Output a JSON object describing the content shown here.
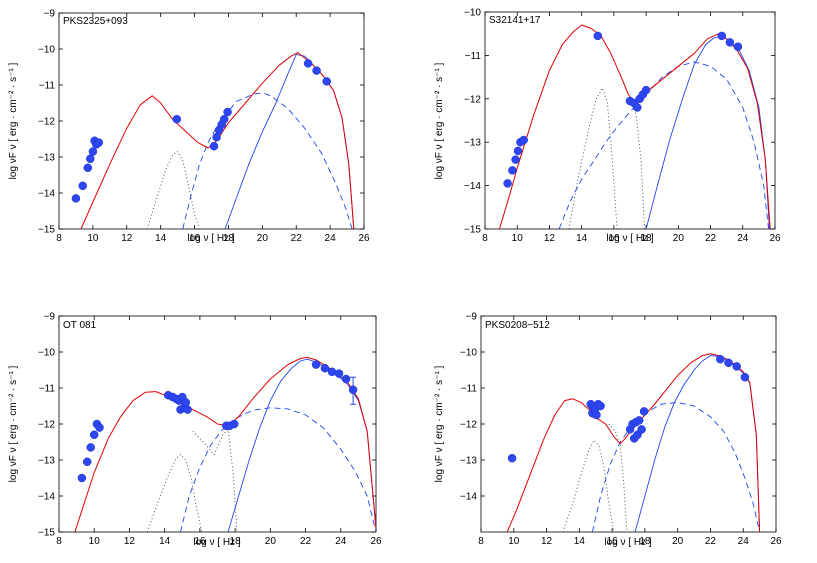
{
  "colors": {
    "total_model": "#e00000",
    "compton": "#2244ee",
    "points": "#2e46f0",
    "thermal": "#555555",
    "axis": "#000000"
  },
  "chart_data": [
    {
      "type": "line",
      "title": "PKS2325+093",
      "xlabel": "log ν [ Hz ]",
      "ylabel": "log νF ν [ erg · cm⁻² · s⁻¹ ]",
      "xlim": [
        8,
        26
      ],
      "ylim": [
        -15,
        -9
      ],
      "xticks": [
        8,
        10,
        12,
        14,
        16,
        18,
        20,
        22,
        24,
        26
      ],
      "yticks": [
        -15,
        -14,
        -13,
        -12,
        -11,
        -10,
        -9
      ],
      "series": [
        {
          "name": "total",
          "style": "solid-red",
          "x": [
            9.3,
            10,
            11,
            12,
            12.8,
            13.5,
            14,
            14.7,
            15.5,
            16.2,
            16.8,
            17.3,
            18,
            19,
            20,
            21,
            21.7,
            22.1,
            22.5,
            23,
            23.6,
            24.2,
            24.7,
            25.1,
            25.4
          ],
          "y": [
            -15,
            -14.25,
            -13.2,
            -12.2,
            -11.55,
            -11.3,
            -11.5,
            -11.95,
            -12.3,
            -12.6,
            -12.75,
            -12.55,
            -12.05,
            -11.5,
            -10.95,
            -10.45,
            -10.2,
            -10.1,
            -10.25,
            -10.45,
            -10.75,
            -11.15,
            -11.9,
            -13.2,
            -15
          ]
        },
        {
          "name": "synchrotron-soft",
          "style": "dotted-gray",
          "x": [
            13.2,
            13.8,
            14.3,
            14.7,
            15.0,
            15.3,
            15.6,
            16.0,
            16.3
          ],
          "y": [
            -15,
            -14.1,
            -13.35,
            -12.95,
            -12.85,
            -13.1,
            -13.7,
            -14.6,
            -15
          ]
        },
        {
          "name": "external-compton",
          "style": "solid-blue",
          "x": [
            17.8,
            18.5,
            19.2,
            20,
            20.8,
            21.5,
            22,
            22.5,
            23,
            23.6,
            24.2,
            24.7,
            25.1,
            25.4
          ],
          "y": [
            -15,
            -14.1,
            -13.2,
            -12.3,
            -11.5,
            -10.7,
            -10.15,
            -10.2,
            -10.45,
            -10.75,
            -11.15,
            -11.9,
            -13.2,
            -15
          ]
        },
        {
          "name": "ssc",
          "style": "dashed-blue",
          "x": [
            15.3,
            15.8,
            16.3,
            16.8,
            17.5,
            18.5,
            19.5,
            20,
            20.5,
            21.5,
            22.5,
            23.5,
            24.3,
            24.9,
            25.3
          ],
          "y": [
            -15,
            -14.05,
            -13.2,
            -12.6,
            -12.0,
            -11.45,
            -11.25,
            -11.22,
            -11.3,
            -11.65,
            -12.2,
            -12.9,
            -13.7,
            -14.4,
            -15
          ]
        }
      ],
      "points": {
        "x": [
          9.0,
          9.4,
          9.7,
          9.85,
          10.0,
          10.1,
          10.2,
          10.35,
          14.95,
          17.15,
          17.3,
          17.45,
          17.6,
          17.75,
          17.95,
          22.7,
          23.2,
          23.8
        ],
        "y": [
          -14.15,
          -13.8,
          -13.3,
          -13.05,
          -12.85,
          -12.55,
          -12.65,
          -12.6,
          -11.95,
          -12.7,
          -12.45,
          -12.25,
          -12.1,
          -11.95,
          -11.75,
          -10.4,
          -10.6,
          -10.9
        ]
      },
      "error_bars": []
    },
    {
      "type": "line",
      "title": "S32141+17",
      "xlabel": "log ν [ Hz ]",
      "ylabel": "log νF ν [ erg · cm⁻² · s⁻¹ ]",
      "xlim": [
        8,
        26
      ],
      "ylim": [
        -15,
        -10
      ],
      "xticks": [
        8,
        10,
        12,
        14,
        16,
        18,
        20,
        22,
        24,
        26
      ],
      "yticks": [
        -15,
        -14,
        -13,
        -12,
        -11,
        -10
      ],
      "series": [
        {
          "name": "total",
          "style": "solid-red",
          "x": [
            8.9,
            9.5,
            10,
            11,
            12,
            12.8,
            13.5,
            14,
            14.6,
            15.2,
            15.8,
            16.4,
            16.9,
            17.3,
            17.6,
            18,
            19,
            20,
            21,
            21.8,
            22.5,
            23,
            23.6,
            24.3,
            24.9,
            25.4,
            25.7
          ],
          "y": [
            -15,
            -14.25,
            -13.6,
            -12.4,
            -11.35,
            -10.75,
            -10.45,
            -10.3,
            -10.38,
            -10.55,
            -10.95,
            -11.45,
            -11.9,
            -12.1,
            -11.95,
            -11.85,
            -11.55,
            -11.25,
            -10.95,
            -10.62,
            -10.5,
            -10.62,
            -10.85,
            -11.3,
            -12.1,
            -13.4,
            -15
          ]
        },
        {
          "name": "synchrotron-soft",
          "style": "dotted-gray",
          "x": [
            13.2,
            13.8,
            14.4,
            14.9,
            15.3,
            15.6,
            15.9,
            16.2
          ],
          "y": [
            -15,
            -13.8,
            -12.75,
            -12.0,
            -11.75,
            -12.1,
            -13.4,
            -15
          ]
        },
        {
          "name": "synchrotron-hard",
          "style": "dotted-gray",
          "x": [
            16.8,
            17.1,
            17.4,
            17.7,
            17.9
          ],
          "y": [
            -12.1,
            -12.0,
            -12.4,
            -13.5,
            -15
          ]
        },
        {
          "name": "external-compton",
          "style": "solid-blue",
          "x": [
            18.0,
            18.7,
            19.5,
            20.3,
            21,
            21.7,
            22.2,
            22.7,
            23.2,
            23.8,
            24.4,
            25,
            25.4,
            25.65
          ],
          "y": [
            -15,
            -14.0,
            -12.9,
            -11.95,
            -11.2,
            -10.75,
            -10.6,
            -10.55,
            -10.68,
            -10.9,
            -11.35,
            -12.2,
            -13.4,
            -15
          ]
        },
        {
          "name": "ssc",
          "style": "dashed-blue",
          "x": [
            12.6,
            13.3,
            14,
            14.8,
            15.5,
            16.2,
            17,
            18,
            19,
            20,
            21,
            22,
            23,
            24,
            24.7,
            25.3,
            25.6
          ],
          "y": [
            -15,
            -14.35,
            -13.85,
            -13.4,
            -13.0,
            -12.65,
            -12.3,
            -11.9,
            -11.5,
            -11.25,
            -11.15,
            -11.25,
            -11.55,
            -12.2,
            -13.0,
            -14.0,
            -15
          ]
        }
      ],
      "points": {
        "x": [
          9.4,
          9.7,
          9.9,
          10.05,
          10.2,
          10.4,
          15.0,
          17.0,
          17.25,
          17.45,
          17.6,
          17.8,
          18.0,
          22.7,
          23.2,
          23.7
        ],
        "y": [
          -13.95,
          -13.65,
          -13.4,
          -13.2,
          -13.0,
          -12.95,
          -10.55,
          -12.05,
          -12.1,
          -12.2,
          -12.0,
          -11.9,
          -11.8,
          -10.55,
          -10.7,
          -10.8
        ]
      },
      "error_bars": []
    },
    {
      "type": "line",
      "title": "OT 081",
      "xlabel": "log ν [ Hz ]",
      "ylabel": "log νF ν [ erg · cm⁻² · s⁻¹ ]",
      "xlim": [
        8,
        26
      ],
      "ylim": [
        -15,
        -9
      ],
      "xticks": [
        8,
        10,
        12,
        14,
        16,
        18,
        20,
        22,
        24,
        26
      ],
      "yticks": [
        -15,
        -14,
        -13,
        -12,
        -11,
        -10,
        -9
      ],
      "series": [
        {
          "name": "total",
          "style": "solid-red",
          "x": [
            8.9,
            9.5,
            10,
            10.8,
            11.5,
            12.2,
            12.9,
            13.5,
            14.0,
            14.6,
            15.2,
            15.8,
            16.4,
            17,
            17.6,
            18.2,
            19,
            20,
            21,
            21.7,
            22.1,
            22.6,
            23.2,
            23.8,
            24.4,
            25,
            25.5,
            26
          ],
          "y": [
            -15,
            -14.1,
            -13.35,
            -12.4,
            -11.8,
            -11.35,
            -11.12,
            -11.1,
            -11.2,
            -11.35,
            -11.5,
            -11.65,
            -11.8,
            -12.0,
            -12.05,
            -11.8,
            -11.3,
            -10.75,
            -10.35,
            -10.18,
            -10.15,
            -10.22,
            -10.4,
            -10.6,
            -10.85,
            -11.3,
            -12.2,
            -14.9
          ]
        },
        {
          "name": "synchrotron-soft",
          "style": "dotted-gray",
          "x": [
            13.0,
            13.6,
            14.1,
            14.6,
            14.9,
            15.2,
            15.5,
            15.8,
            16.1
          ],
          "y": [
            -15,
            -14.2,
            -13.55,
            -13.0,
            -12.85,
            -13.0,
            -13.5,
            -14.3,
            -15
          ]
        },
        {
          "name": "synchrotron-hard",
          "style": "dotted-gray",
          "x": [
            15.6,
            16.2,
            16.8,
            17.3,
            17.6,
            17.9,
            18.1
          ],
          "y": [
            -12.2,
            -12.5,
            -12.85,
            -12.3,
            -12.15,
            -13.4,
            -15
          ]
        },
        {
          "name": "external-compton",
          "style": "solid-blue",
          "x": [
            17.6,
            18.2,
            18.8,
            19.4,
            20,
            20.6,
            21.2,
            21.7,
            22.1,
            22.6,
            23.2,
            23.8,
            24.4,
            25,
            25.5,
            26
          ],
          "y": [
            -15,
            -14.0,
            -13.0,
            -12.1,
            -11.35,
            -10.8,
            -10.45,
            -10.25,
            -10.2,
            -10.28,
            -10.45,
            -10.65,
            -10.9,
            -11.35,
            -12.2,
            -14.9
          ]
        },
        {
          "name": "ssc",
          "style": "dashed-blue",
          "x": [
            14.9,
            15.4,
            16,
            16.6,
            17.2,
            18,
            19,
            20,
            21,
            22,
            23,
            24,
            24.8,
            25.5,
            26
          ],
          "y": [
            -15,
            -14.0,
            -13.2,
            -12.6,
            -12.2,
            -11.85,
            -11.62,
            -11.55,
            -11.58,
            -11.75,
            -12.1,
            -12.7,
            -13.3,
            -14.0,
            -15
          ]
        }
      ],
      "points": {
        "x": [
          9.3,
          9.6,
          9.8,
          10.0,
          10.15,
          10.3,
          14.2,
          14.45,
          14.65,
          14.8,
          14.9,
          15.0,
          15.1,
          15.2,
          15.3,
          17.5,
          17.7,
          17.95,
          22.6,
          23.1,
          23.5,
          23.9,
          24.3,
          24.7
        ],
        "y": [
          -13.5,
          -13.05,
          -12.65,
          -12.3,
          -12.0,
          -12.1,
          -11.2,
          -11.25,
          -11.3,
          -11.35,
          -11.6,
          -11.25,
          -11.55,
          -11.4,
          -11.6,
          -12.05,
          -12.05,
          -12.0,
          -10.35,
          -10.45,
          -10.55,
          -10.6,
          -10.75,
          -11.05
        ]
      },
      "error_bars": [
        {
          "x": 24.7,
          "y_low": -11.45,
          "y_high": -10.7
        }
      ]
    },
    {
      "type": "line",
      "title": "PKS0208−512",
      "xlabel": "log ν [ Hz ]",
      "ylabel": "log νF ν [ erg · cm⁻² · s⁻¹ ]",
      "xlim": [
        8,
        26
      ],
      "ylim": [
        -15,
        -9
      ],
      "xticks": [
        8,
        10,
        12,
        14,
        16,
        18,
        20,
        22,
        24,
        26
      ],
      "yticks": [
        -14,
        -13,
        -12,
        -11,
        -10,
        -9
      ],
      "series": [
        {
          "name": "total",
          "style": "solid-red",
          "x": [
            9.6,
            10.2,
            11,
            11.8,
            12.5,
            13.1,
            13.6,
            14.1,
            14.6,
            15.1,
            15.6,
            16.1,
            16.5,
            16.8,
            17.2,
            17.7,
            18.5,
            19.3,
            20,
            20.8,
            21.5,
            22.0,
            22.5,
            23,
            23.5,
            24,
            24.4,
            24.8,
            25.0
          ],
          "y": [
            -15,
            -14.35,
            -13.4,
            -12.45,
            -11.75,
            -11.35,
            -11.3,
            -11.4,
            -11.6,
            -11.85,
            -12.0,
            -12.35,
            -12.55,
            -12.4,
            -12.15,
            -11.9,
            -11.5,
            -11.05,
            -10.65,
            -10.3,
            -10.1,
            -10.05,
            -10.1,
            -10.2,
            -10.35,
            -10.55,
            -10.85,
            -12.3,
            -15
          ]
        },
        {
          "name": "synchrotron-soft",
          "style": "dotted-gray",
          "x": [
            13.0,
            13.6,
            14.1,
            14.6,
            14.9,
            15.2,
            15.5,
            15.8,
            16.1
          ],
          "y": [
            -15,
            -14.2,
            -13.4,
            -12.7,
            -12.45,
            -12.6,
            -13.2,
            -14.2,
            -15
          ]
        },
        {
          "name": "synchrotron-hard",
          "style": "dotted-gray",
          "x": [
            15.8,
            16.2,
            16.5,
            16.7,
            16.9
          ],
          "y": [
            -12.0,
            -12.2,
            -12.6,
            -13.6,
            -15
          ]
        },
        {
          "name": "external-compton",
          "style": "solid-blue",
          "x": [
            17.4,
            18,
            18.6,
            19.2,
            19.8,
            20.4,
            21,
            21.5,
            22.0,
            22.5,
            23,
            23.5,
            24,
            24.4,
            24.8,
            25.0
          ],
          "y": [
            -15,
            -14.0,
            -13.0,
            -12.1,
            -11.4,
            -10.9,
            -10.5,
            -10.25,
            -10.1,
            -10.12,
            -10.22,
            -10.38,
            -10.58,
            -10.87,
            -12.3,
            -15
          ]
        },
        {
          "name": "ssc",
          "style": "dashed-blue",
          "x": [
            14.8,
            15.3,
            15.9,
            16.5,
            17.2,
            18,
            19,
            20,
            21,
            22,
            22.8,
            23.5,
            24.1,
            24.6,
            25.0
          ],
          "y": [
            -15,
            -14.0,
            -13.1,
            -12.5,
            -12.05,
            -11.7,
            -11.45,
            -11.4,
            -11.5,
            -11.8,
            -12.2,
            -12.8,
            -13.5,
            -14.2,
            -15
          ]
        }
      ],
      "points": {
        "x": [
          9.9,
          14.7,
          14.8,
          14.85,
          14.95,
          15.05,
          15.15,
          15.3,
          17.1,
          17.25,
          17.35,
          17.45,
          17.55,
          17.65,
          17.8,
          17.95,
          22.6,
          23.1,
          23.6,
          24.1
        ],
        "y": [
          -12.95,
          -11.45,
          -11.7,
          -11.55,
          -11.6,
          -11.75,
          -11.45,
          -11.5,
          -12.15,
          -12.0,
          -12.4,
          -11.95,
          -12.3,
          -11.9,
          -12.15,
          -11.65,
          -10.2,
          -10.3,
          -10.4,
          -10.7
        ]
      },
      "error_bars": []
    }
  ]
}
